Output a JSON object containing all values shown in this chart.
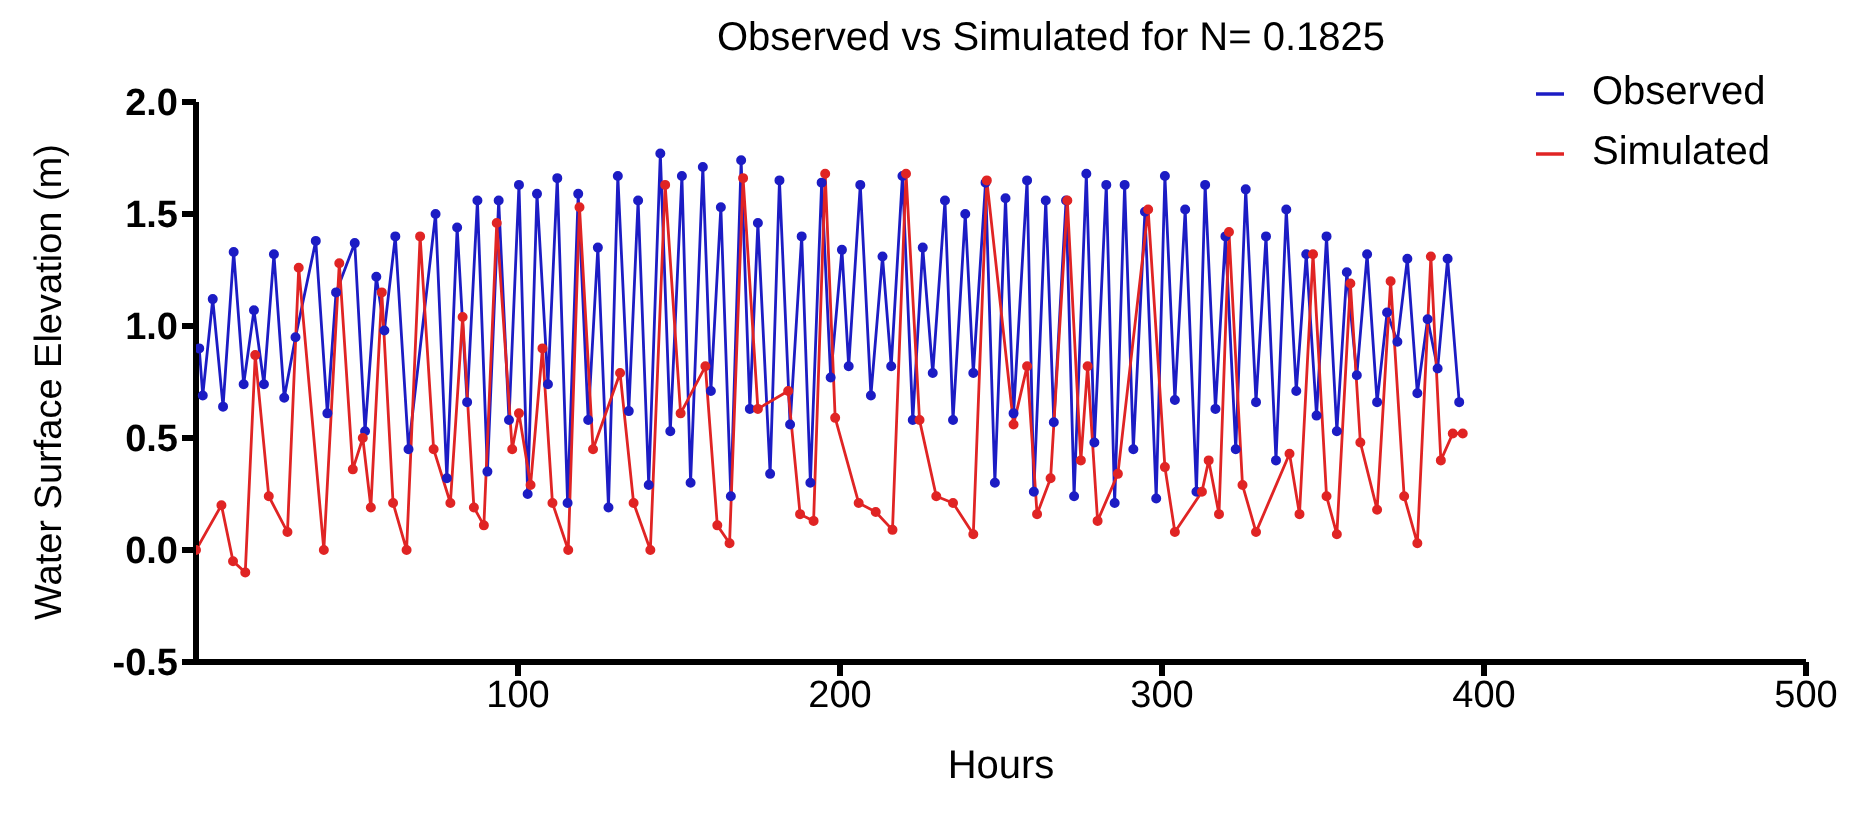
{
  "chart_data": {
    "type": "line",
    "title": "Observed vs Simulated for N= 0.1825",
    "xlabel": "Hours",
    "ylabel": "Water Surface Elevation (m)",
    "xlim": [
      0,
      500
    ],
    "xticks": [
      100,
      200,
      300,
      400,
      500
    ],
    "ylim": [
      -0.5,
      2.0
    ],
    "yticks": [
      -0.5,
      {
        "value": 0,
        "label": "0.0"
      },
      0.5,
      {
        "value": 1,
        "label": "1.0"
      },
      1.5,
      {
        "value": 2,
        "label": "2.0"
      }
    ],
    "grid": false,
    "legend": "top right",
    "marker": "circle",
    "line_style": "solid",
    "series": [
      {
        "name": "Observed",
        "color": "#1c1cc4",
        "x": [
          1.0,
          2.1,
          5.2,
          8.4,
          11.7,
          14.8,
          18.0,
          21.1,
          24.2,
          27.4,
          30.9,
          37.2,
          40.8,
          43.5,
          49.3,
          52.5,
          56.0,
          58.5,
          61.9,
          66.0,
          74.4,
          77.9,
          81.1,
          84.2,
          87.4,
          90.5,
          94.0,
          97.2,
          100.3,
          103.0,
          105.9,
          109.3,
          112.2,
          115.4,
          118.7,
          121.8,
          124.8,
          128.1,
          131.0,
          134.4,
          137.3,
          140.6,
          144.2,
          147.3,
          150.9,
          153.6,
          157.4,
          159.9,
          163.0,
          166.1,
          169.3,
          172.0,
          174.5,
          178.3,
          181.2,
          184.5,
          188.1,
          190.8,
          194.3,
          197.1,
          200.6,
          202.7,
          206.3,
          209.6,
          213.2,
          215.9,
          219.4,
          222.6,
          225.7,
          228.8,
          232.6,
          235.1,
          238.9,
          241.4,
          245.2,
          248.1,
          251.4,
          253.9,
          258.1,
          260.2,
          263.9,
          266.4,
          270.2,
          272.7,
          276.5,
          279.0,
          282.7,
          285.3,
          288.4,
          291.1,
          294.7,
          298.2,
          300.9,
          304.0,
          307.2,
          310.7,
          313.4,
          316.6,
          319.7,
          322.9,
          326.0,
          329.2,
          332.3,
          335.4,
          338.6,
          341.7,
          344.8,
          348.0,
          351.1,
          354.3,
          357.4,
          360.5,
          363.7,
          366.8,
          369.9,
          373.1,
          376.2,
          379.3,
          382.5,
          385.6,
          388.7,
          392.3
        ],
        "values": [
          0.9,
          0.69,
          1.12,
          0.64,
          1.33,
          0.74,
          1.07,
          0.74,
          1.32,
          0.68,
          0.95,
          1.38,
          0.61,
          1.15,
          1.37,
          0.53,
          1.22,
          0.98,
          1.4,
          0.45,
          1.5,
          0.32,
          1.44,
          0.66,
          1.56,
          0.35,
          1.56,
          0.58,
          1.63,
          0.25,
          1.59,
          0.74,
          1.66,
          0.21,
          1.59,
          0.58,
          1.35,
          0.19,
          1.67,
          0.62,
          1.56,
          0.29,
          1.77,
          0.53,
          1.67,
          0.3,
          1.71,
          0.71,
          1.53,
          0.24,
          1.74,
          0.63,
          1.46,
          0.34,
          1.65,
          0.56,
          1.4,
          0.3,
          1.64,
          0.77,
          1.34,
          0.82,
          1.63,
          0.69,
          1.31,
          0.82,
          1.67,
          0.58,
          1.35,
          0.79,
          1.56,
          0.58,
          1.5,
          0.79,
          1.64,
          0.3,
          1.57,
          0.61,
          1.65,
          0.26,
          1.56,
          0.57,
          1.56,
          0.24,
          1.68,
          0.48,
          1.63,
          0.21,
          1.63,
          0.45,
          1.51,
          0.23,
          1.67,
          0.67,
          1.52,
          0.26,
          1.63,
          0.63,
          1.4,
          0.45,
          1.61,
          0.66,
          1.4,
          0.4,
          1.52,
          0.71,
          1.32,
          0.6,
          1.4,
          0.53,
          1.24,
          0.78,
          1.32,
          0.66,
          1.06,
          0.93,
          1.3,
          0.7,
          1.03,
          0.81,
          1.3,
          0.66
        ]
      },
      {
        "name": "Simulated",
        "color": "#e02424",
        "x": [
          0.0,
          7.9,
          11.5,
          15.3,
          18.4,
          22.6,
          28.4,
          31.9,
          39.7,
          44.5,
          48.7,
          51.8,
          54.3,
          57.7,
          61.2,
          65.4,
          69.6,
          73.8,
          79.0,
          82.8,
          86.3,
          89.4,
          93.4,
          98.2,
          100.3,
          103.9,
          107.6,
          110.7,
          115.6,
          119.1,
          123.3,
          131.7,
          135.9,
          141.1,
          145.7,
          150.5,
          158.2,
          161.9,
          165.7,
          169.9,
          174.5,
          183.9,
          187.6,
          191.8,
          195.4,
          198.5,
          205.8,
          211.1,
          216.3,
          220.5,
          224.7,
          229.9,
          235.1,
          241.4,
          245.6,
          253.9,
          258.1,
          261.2,
          265.4,
          270.6,
          274.8,
          276.9,
          280.0,
          286.3,
          295.7,
          300.9,
          304.0,
          312.4,
          314.5,
          317.7,
          320.8,
          325.0,
          329.2,
          339.6,
          342.7,
          346.9,
          351.1,
          354.3,
          358.5,
          361.6,
          366.8,
          371.0,
          375.2,
          379.3,
          383.5,
          386.6,
          390.3,
          393.4
        ],
        "values": [
          0.0,
          0.2,
          -0.05,
          -0.1,
          0.87,
          0.24,
          0.08,
          1.26,
          0.0,
          1.28,
          0.36,
          0.5,
          0.19,
          1.15,
          0.21,
          0.0,
          1.4,
          0.45,
          0.21,
          1.04,
          0.19,
          0.11,
          1.46,
          0.45,
          0.61,
          0.29,
          0.9,
          0.21,
          0.0,
          1.53,
          0.45,
          0.79,
          0.21,
          0.0,
          1.63,
          0.61,
          0.82,
          0.11,
          0.03,
          1.66,
          0.63,
          0.71,
          0.16,
          0.13,
          1.68,
          0.59,
          0.21,
          0.17,
          0.09,
          1.68,
          0.58,
          0.24,
          0.21,
          0.07,
          1.65,
          0.56,
          0.82,
          0.16,
          0.32,
          1.56,
          0.4,
          0.82,
          0.13,
          0.34,
          1.52,
          0.37,
          0.08,
          0.26,
          0.4,
          0.16,
          1.42,
          0.29,
          0.08,
          0.43,
          0.16,
          1.32,
          0.24,
          0.07,
          1.19,
          0.48,
          0.18,
          1.2,
          0.24,
          0.03,
          1.31,
          0.4,
          0.52,
          0.52
        ]
      }
    ]
  }
}
